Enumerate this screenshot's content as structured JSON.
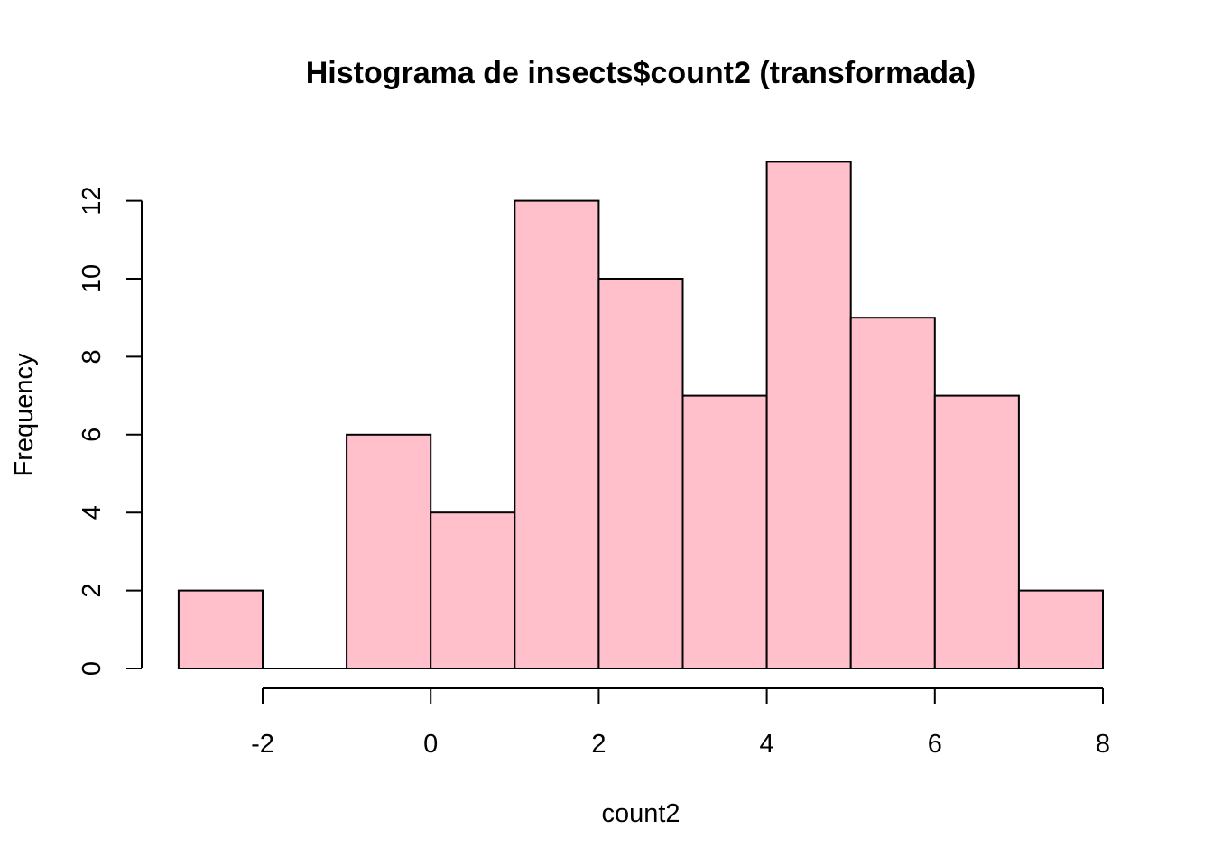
{
  "chart_data": {
    "type": "bar",
    "title": "Histograma de insects$count2 (transformada)",
    "xlabel": "count2",
    "ylabel": "Frequency",
    "bins": [
      {
        "x0": -3,
        "x1": -2,
        "count": 2
      },
      {
        "x0": -2,
        "x1": -1,
        "count": 0
      },
      {
        "x0": -1,
        "x1": 0,
        "count": 6
      },
      {
        "x0": 0,
        "x1": 1,
        "count": 4
      },
      {
        "x0": 1,
        "x1": 2,
        "count": 12
      },
      {
        "x0": 2,
        "x1": 3,
        "count": 10
      },
      {
        "x0": 3,
        "x1": 4,
        "count": 7
      },
      {
        "x0": 4,
        "x1": 5,
        "count": 13
      },
      {
        "x0": 5,
        "x1": 6,
        "count": 9
      },
      {
        "x0": 6,
        "x1": 7,
        "count": 7
      },
      {
        "x0": 7,
        "x1": 8,
        "count": 2
      }
    ],
    "xlim": [
      -3,
      8
    ],
    "ylim": [
      0,
      13
    ],
    "x_ticks": [
      -2,
      0,
      2,
      4,
      6,
      8
    ],
    "y_ticks": [
      0,
      2,
      4,
      6,
      8,
      10,
      12
    ],
    "bar_color": "#ffc0cb",
    "grid": false
  }
}
